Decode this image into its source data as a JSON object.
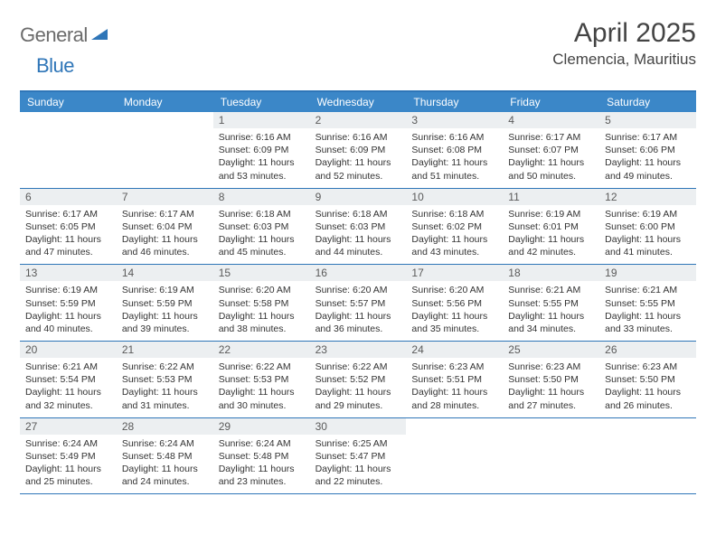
{
  "logo": {
    "text_gray": "General",
    "text_blue": "Blue"
  },
  "header": {
    "title": "April 2025",
    "location": "Clemencia, Mauritius"
  },
  "colors": {
    "header_bar": "#3b87c8",
    "border": "#2f76b8",
    "day_num_bg": "#eceff1",
    "text_muted": "#5a5a5a",
    "text_body": "#333333",
    "text_title": "#444444"
  },
  "weekdays": [
    "Sunday",
    "Monday",
    "Tuesday",
    "Wednesday",
    "Thursday",
    "Friday",
    "Saturday"
  ],
  "weeks": [
    [
      null,
      null,
      {
        "n": "1",
        "sr": "6:16 AM",
        "ss": "6:09 PM",
        "dl": "11 hours and 53 minutes."
      },
      {
        "n": "2",
        "sr": "6:16 AM",
        "ss": "6:09 PM",
        "dl": "11 hours and 52 minutes."
      },
      {
        "n": "3",
        "sr": "6:16 AM",
        "ss": "6:08 PM",
        "dl": "11 hours and 51 minutes."
      },
      {
        "n": "4",
        "sr": "6:17 AM",
        "ss": "6:07 PM",
        "dl": "11 hours and 50 minutes."
      },
      {
        "n": "5",
        "sr": "6:17 AM",
        "ss": "6:06 PM",
        "dl": "11 hours and 49 minutes."
      }
    ],
    [
      {
        "n": "6",
        "sr": "6:17 AM",
        "ss": "6:05 PM",
        "dl": "11 hours and 47 minutes."
      },
      {
        "n": "7",
        "sr": "6:17 AM",
        "ss": "6:04 PM",
        "dl": "11 hours and 46 minutes."
      },
      {
        "n": "8",
        "sr": "6:18 AM",
        "ss": "6:03 PM",
        "dl": "11 hours and 45 minutes."
      },
      {
        "n": "9",
        "sr": "6:18 AM",
        "ss": "6:03 PM",
        "dl": "11 hours and 44 minutes."
      },
      {
        "n": "10",
        "sr": "6:18 AM",
        "ss": "6:02 PM",
        "dl": "11 hours and 43 minutes."
      },
      {
        "n": "11",
        "sr": "6:19 AM",
        "ss": "6:01 PM",
        "dl": "11 hours and 42 minutes."
      },
      {
        "n": "12",
        "sr": "6:19 AM",
        "ss": "6:00 PM",
        "dl": "11 hours and 41 minutes."
      }
    ],
    [
      {
        "n": "13",
        "sr": "6:19 AM",
        "ss": "5:59 PM",
        "dl": "11 hours and 40 minutes."
      },
      {
        "n": "14",
        "sr": "6:19 AM",
        "ss": "5:59 PM",
        "dl": "11 hours and 39 minutes."
      },
      {
        "n": "15",
        "sr": "6:20 AM",
        "ss": "5:58 PM",
        "dl": "11 hours and 38 minutes."
      },
      {
        "n": "16",
        "sr": "6:20 AM",
        "ss": "5:57 PM",
        "dl": "11 hours and 36 minutes."
      },
      {
        "n": "17",
        "sr": "6:20 AM",
        "ss": "5:56 PM",
        "dl": "11 hours and 35 minutes."
      },
      {
        "n": "18",
        "sr": "6:21 AM",
        "ss": "5:55 PM",
        "dl": "11 hours and 34 minutes."
      },
      {
        "n": "19",
        "sr": "6:21 AM",
        "ss": "5:55 PM",
        "dl": "11 hours and 33 minutes."
      }
    ],
    [
      {
        "n": "20",
        "sr": "6:21 AM",
        "ss": "5:54 PM",
        "dl": "11 hours and 32 minutes."
      },
      {
        "n": "21",
        "sr": "6:22 AM",
        "ss": "5:53 PM",
        "dl": "11 hours and 31 minutes."
      },
      {
        "n": "22",
        "sr": "6:22 AM",
        "ss": "5:53 PM",
        "dl": "11 hours and 30 minutes."
      },
      {
        "n": "23",
        "sr": "6:22 AM",
        "ss": "5:52 PM",
        "dl": "11 hours and 29 minutes."
      },
      {
        "n": "24",
        "sr": "6:23 AM",
        "ss": "5:51 PM",
        "dl": "11 hours and 28 minutes."
      },
      {
        "n": "25",
        "sr": "6:23 AM",
        "ss": "5:50 PM",
        "dl": "11 hours and 27 minutes."
      },
      {
        "n": "26",
        "sr": "6:23 AM",
        "ss": "5:50 PM",
        "dl": "11 hours and 26 minutes."
      }
    ],
    [
      {
        "n": "27",
        "sr": "6:24 AM",
        "ss": "5:49 PM",
        "dl": "11 hours and 25 minutes."
      },
      {
        "n": "28",
        "sr": "6:24 AM",
        "ss": "5:48 PM",
        "dl": "11 hours and 24 minutes."
      },
      {
        "n": "29",
        "sr": "6:24 AM",
        "ss": "5:48 PM",
        "dl": "11 hours and 23 minutes."
      },
      {
        "n": "30",
        "sr": "6:25 AM",
        "ss": "5:47 PM",
        "dl": "11 hours and 22 minutes."
      },
      null,
      null,
      null
    ]
  ],
  "labels": {
    "sunrise": "Sunrise: ",
    "sunset": "Sunset: ",
    "daylight": "Daylight: "
  }
}
